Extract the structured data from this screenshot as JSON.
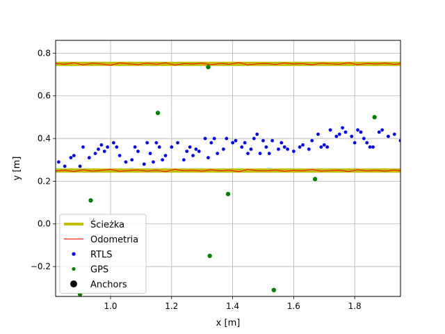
{
  "chart_data": {
    "type": "scatter",
    "xlabel": "x [m]",
    "ylabel": "y [m]",
    "xlim": [
      0.82,
      1.95
    ],
    "ylim": [
      -0.34,
      0.86
    ],
    "xticks": [
      1.0,
      1.2,
      1.4,
      1.6,
      1.8
    ],
    "xtick_labels": [
      "1.0",
      "1.2",
      "1.4",
      "1.6",
      "1.8"
    ],
    "yticks": [
      -0.2,
      0.0,
      0.2,
      0.4,
      0.6,
      0.8
    ],
    "ytick_labels": [
      "−0.2",
      "0.0",
      "0.2",
      "0.4",
      "0.6",
      "0.8"
    ],
    "grid": true,
    "legend_position": "lower-left",
    "legend": [
      {
        "label": "Ścieżka",
        "kind": "thick-line",
        "color": "#bfbf00"
      },
      {
        "label": "Odometria",
        "kind": "line",
        "color": "#ff0000"
      },
      {
        "label": "RTLS",
        "kind": "dot",
        "color": "#0000ff"
      },
      {
        "label": "GPS",
        "kind": "dot",
        "color": "#008000"
      },
      {
        "label": "Anchors",
        "kind": "big-dot",
        "color": "#000000"
      }
    ],
    "series": [
      {
        "name": "Ścieżka",
        "color": "#bfbf00",
        "segments": [
          {
            "x": [
              0.82,
              1.95
            ],
            "y": [
              0.75,
              0.75
            ]
          },
          {
            "x": [
              0.82,
              1.95
            ],
            "y": [
              0.25,
              0.25
            ]
          }
        ]
      },
      {
        "name": "Odometria",
        "color": "#ff0000",
        "segments": [
          {
            "x": [
              0.82,
              0.85,
              0.88,
              0.91,
              0.94,
              0.97,
              1.0,
              1.03,
              1.06,
              1.09,
              1.12,
              1.15,
              1.18,
              1.21,
              1.24,
              1.27,
              1.3,
              1.33,
              1.36,
              1.39,
              1.42,
              1.45,
              1.48,
              1.51,
              1.54,
              1.57,
              1.6,
              1.63,
              1.66,
              1.69,
              1.72,
              1.75,
              1.78,
              1.81,
              1.84,
              1.87,
              1.9,
              1.93,
              1.95
            ],
            "y": [
              0.752,
              0.748,
              0.755,
              0.745,
              0.753,
              0.749,
              0.744,
              0.754,
              0.75,
              0.746,
              0.753,
              0.748,
              0.755,
              0.744,
              0.751,
              0.749,
              0.753,
              0.746,
              0.752,
              0.748,
              0.756,
              0.745,
              0.75,
              0.752,
              0.747,
              0.754,
              0.749,
              0.751,
              0.745,
              0.753,
              0.75,
              0.748,
              0.755,
              0.746,
              0.752,
              0.749,
              0.753,
              0.747,
              0.751
            ]
          },
          {
            "x": [
              0.82,
              0.85,
              0.88,
              0.91,
              0.94,
              0.97,
              1.0,
              1.03,
              1.06,
              1.09,
              1.12,
              1.15,
              1.18,
              1.21,
              1.24,
              1.27,
              1.3,
              1.33,
              1.36,
              1.39,
              1.42,
              1.45,
              1.48,
              1.51,
              1.54,
              1.57,
              1.6,
              1.63,
              1.66,
              1.69,
              1.72,
              1.75,
              1.78,
              1.81,
              1.84,
              1.87,
              1.9,
              1.93,
              1.95
            ],
            "y": [
              0.248,
              0.252,
              0.245,
              0.254,
              0.247,
              0.251,
              0.255,
              0.246,
              0.25,
              0.253,
              0.247,
              0.252,
              0.244,
              0.256,
              0.249,
              0.251,
              0.247,
              0.254,
              0.248,
              0.252,
              0.244,
              0.255,
              0.25,
              0.248,
              0.253,
              0.246,
              0.251,
              0.249,
              0.255,
              0.247,
              0.25,
              0.252,
              0.245,
              0.254,
              0.248,
              0.251,
              0.247,
              0.253,
              0.249
            ]
          }
        ]
      },
      {
        "name": "RTLS",
        "color": "#0000ff",
        "x": [
          0.83,
          0.85,
          0.87,
          0.88,
          0.9,
          0.91,
          0.93,
          0.95,
          0.96,
          0.97,
          0.98,
          0.99,
          1.01,
          1.02,
          1.03,
          1.05,
          1.07,
          1.08,
          1.09,
          1.11,
          1.12,
          1.13,
          1.14,
          1.15,
          1.16,
          1.17,
          1.18,
          1.2,
          1.22,
          1.24,
          1.25,
          1.26,
          1.27,
          1.28,
          1.29,
          1.31,
          1.32,
          1.33,
          1.34,
          1.35,
          1.37,
          1.38,
          1.4,
          1.41,
          1.43,
          1.44,
          1.45,
          1.46,
          1.47,
          1.48,
          1.49,
          1.5,
          1.51,
          1.52,
          1.53,
          1.55,
          1.56,
          1.57,
          1.58,
          1.6,
          1.62,
          1.63,
          1.65,
          1.66,
          1.68,
          1.69,
          1.7,
          1.71,
          1.72,
          1.74,
          1.75,
          1.76,
          1.77,
          1.79,
          1.8,
          1.81,
          1.82,
          1.83,
          1.84,
          1.85,
          1.86,
          1.88,
          1.89,
          1.91,
          1.93,
          1.95
        ],
        "y": [
          0.29,
          0.27,
          0.31,
          0.32,
          0.27,
          0.36,
          0.31,
          0.33,
          0.35,
          0.37,
          0.34,
          0.36,
          0.38,
          0.36,
          0.32,
          0.29,
          0.3,
          0.36,
          0.34,
          0.28,
          0.38,
          0.33,
          0.29,
          0.38,
          0.36,
          0.3,
          0.32,
          0.36,
          0.38,
          0.3,
          0.34,
          0.36,
          0.32,
          0.35,
          0.34,
          0.4,
          0.31,
          0.38,
          0.4,
          0.33,
          0.35,
          0.4,
          0.38,
          0.39,
          0.36,
          0.38,
          0.33,
          0.35,
          0.4,
          0.42,
          0.33,
          0.39,
          0.36,
          0.33,
          0.39,
          0.35,
          0.38,
          0.36,
          0.35,
          0.34,
          0.36,
          0.37,
          0.35,
          0.39,
          0.42,
          0.36,
          0.37,
          0.36,
          0.44,
          0.41,
          0.42,
          0.45,
          0.43,
          0.41,
          0.38,
          0.44,
          0.43,
          0.4,
          0.38,
          0.36,
          0.36,
          0.43,
          0.44,
          0.41,
          0.42,
          0.39
        ]
      },
      {
        "name": "GPS",
        "color": "#008000",
        "x": [
          0.9,
          0.935,
          1.155,
          1.32,
          1.325,
          1.385,
          1.535,
          1.67,
          1.865
        ],
        "y": [
          -0.33,
          0.11,
          0.52,
          0.735,
          -0.15,
          0.14,
          -0.31,
          0.21,
          0.5
        ]
      },
      {
        "name": "Anchors",
        "color": "#000000",
        "x": [],
        "y": []
      }
    ]
  }
}
